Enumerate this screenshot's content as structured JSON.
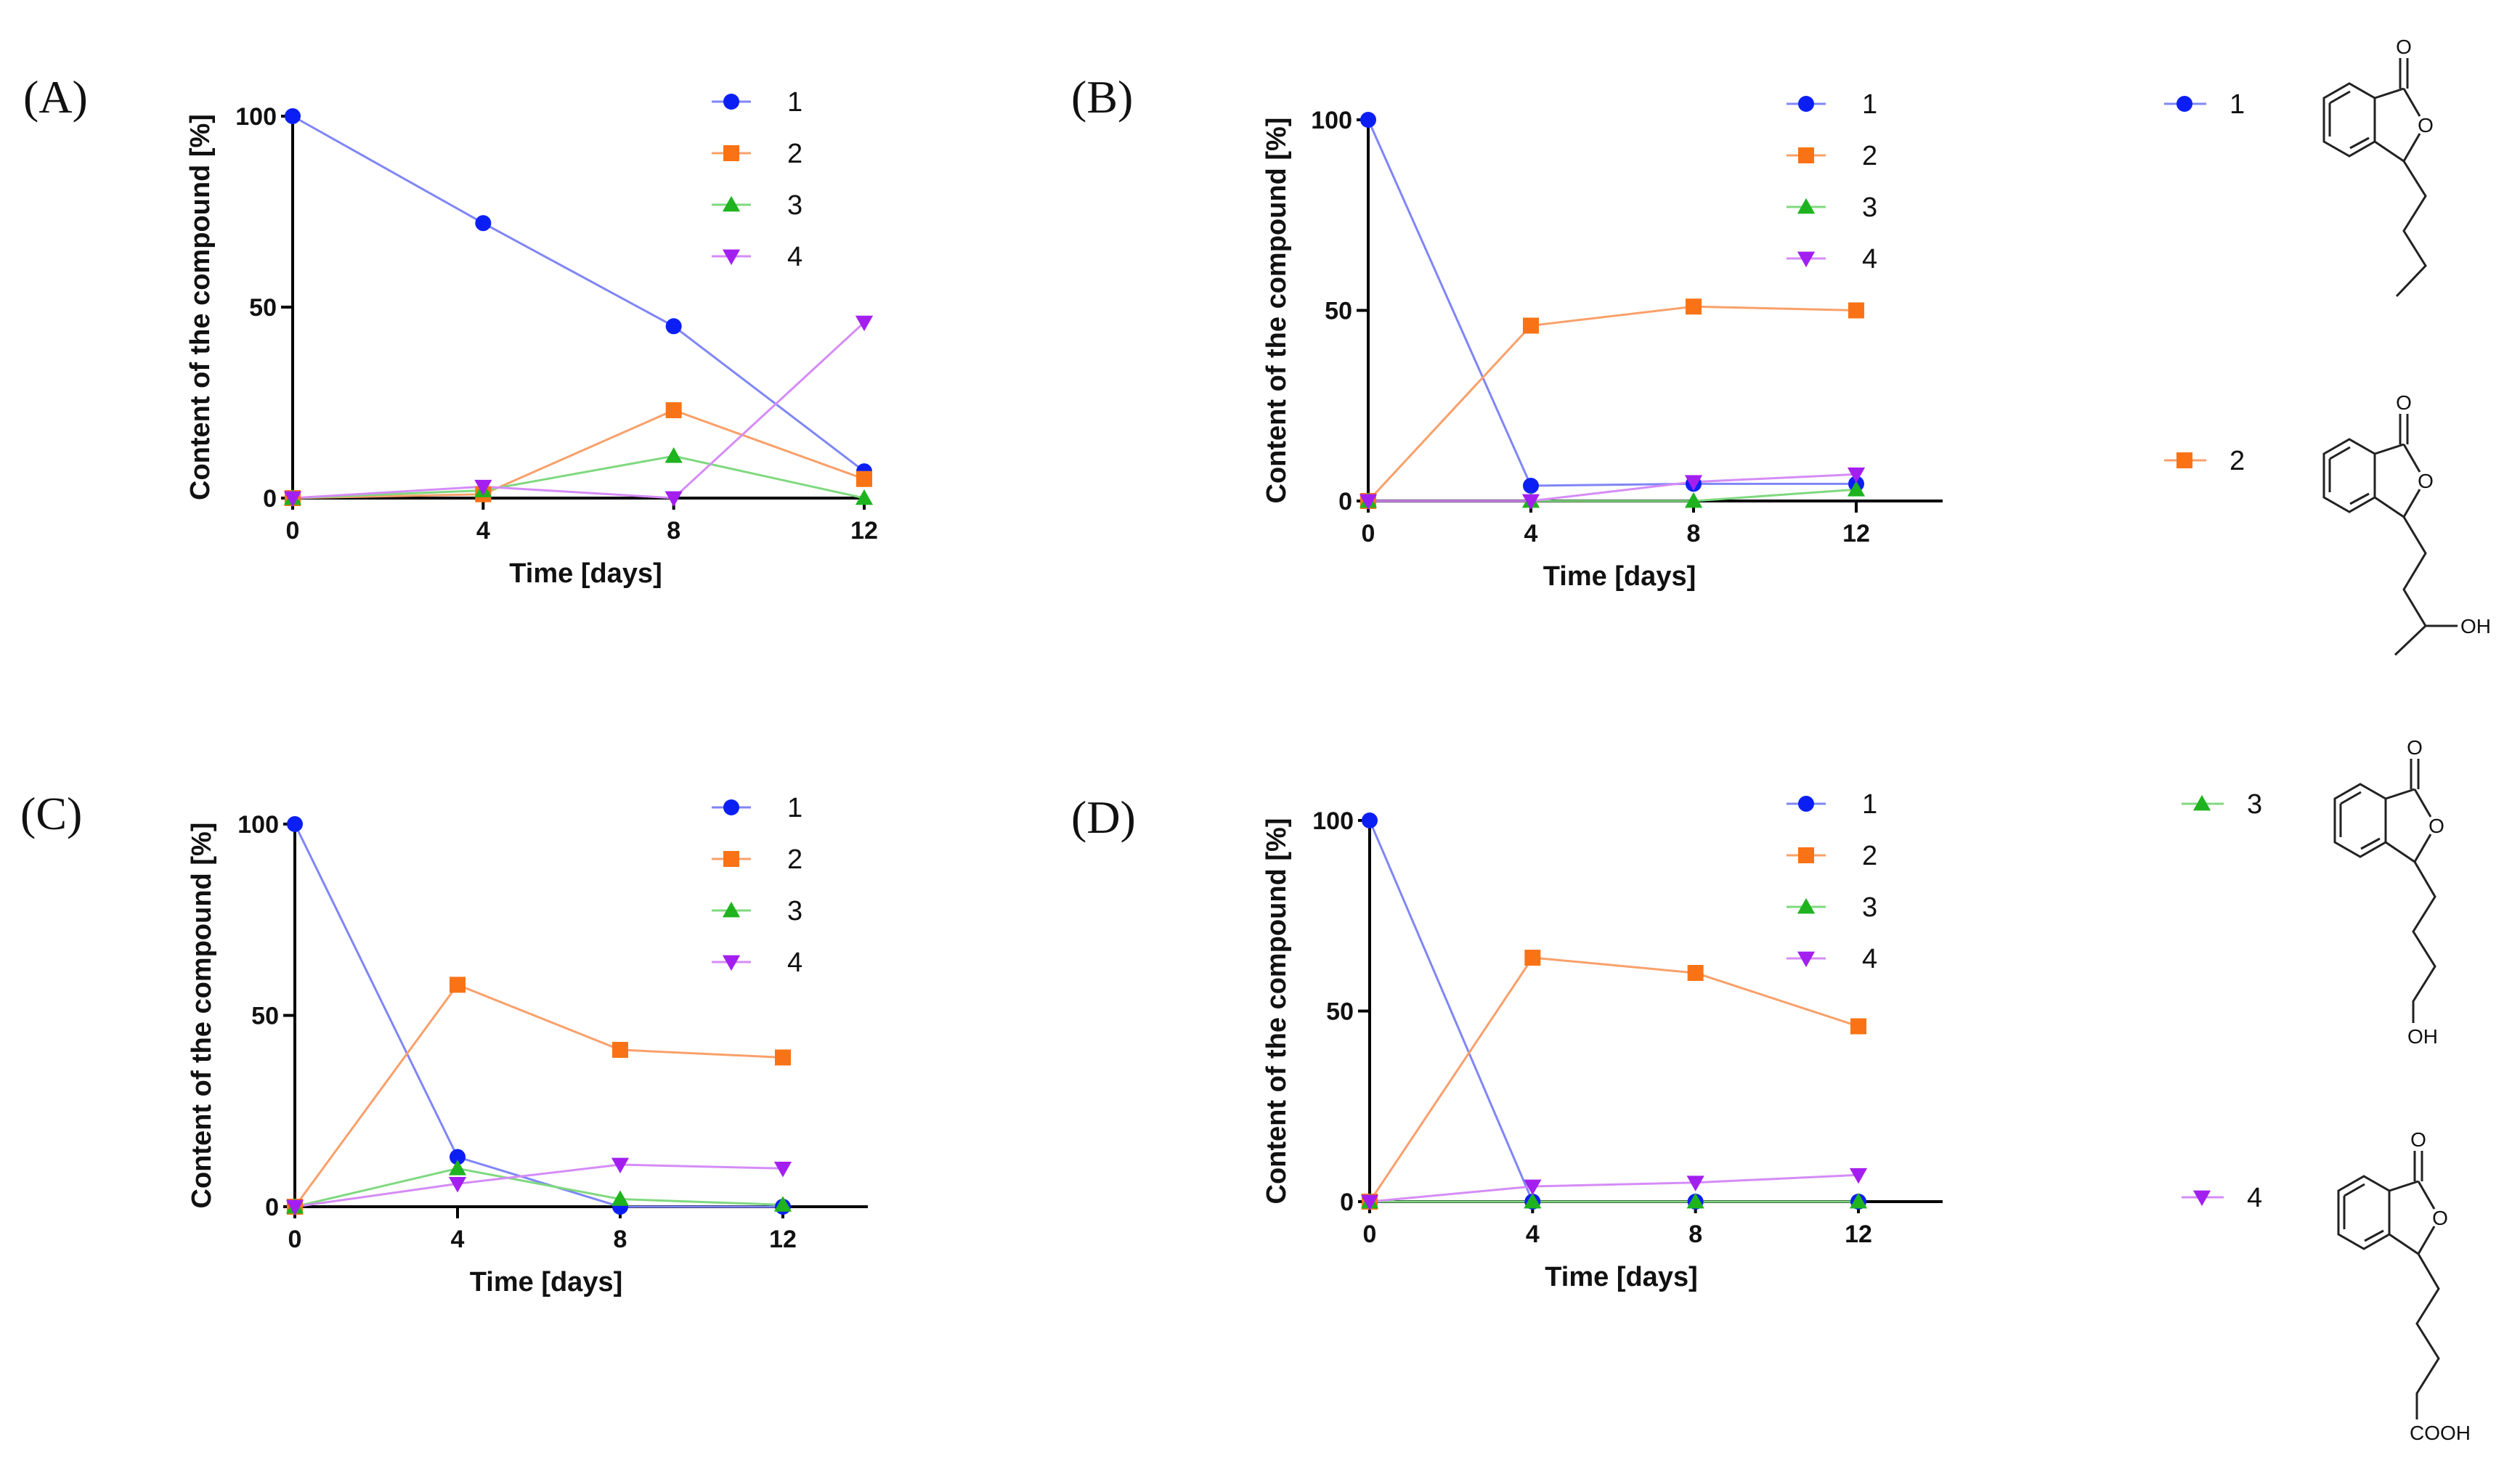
{
  "chart_data": [
    {
      "panel": "(A)",
      "type": "line",
      "xlabel": "Time [days]",
      "ylabel": "Content of the compound [%]",
      "x": [
        0,
        4,
        8,
        12
      ],
      "xticks": [
        "0",
        "4",
        "8",
        "12"
      ],
      "yticks": [
        "0",
        "50",
        "100"
      ],
      "xlim": [
        0,
        12.2
      ],
      "ylim": [
        0,
        100
      ],
      "series": [
        {
          "name": "1",
          "marker": "circle",
          "color": "#0b1ff5",
          "line_color": "#7f86f7",
          "values": [
            100,
            72,
            45,
            7
          ]
        },
        {
          "name": "2",
          "marker": "square",
          "color": "#f97316",
          "line_color": "#f9a06a",
          "values": [
            0,
            1,
            23,
            5
          ]
        },
        {
          "name": "3",
          "marker": "triangle-up",
          "color": "#1fb31f",
          "line_color": "#7fd97f",
          "values": [
            0,
            2,
            11,
            0
          ]
        },
        {
          "name": "4",
          "marker": "triangle-down",
          "color": "#a31ff0",
          "line_color": "#d58cf7",
          "values": [
            0,
            3,
            0,
            46
          ]
        }
      ]
    },
    {
      "panel": "(B)",
      "type": "line",
      "xlabel": "Time [days]",
      "ylabel": "Content of the compound [%]",
      "x": [
        0,
        4,
        8,
        12
      ],
      "xticks": [
        "0",
        "4",
        "8",
        "12"
      ],
      "yticks": [
        "0",
        "50",
        "100"
      ],
      "xlim": [
        0,
        14
      ],
      "ylim": [
        0,
        100
      ],
      "series": [
        {
          "name": "1",
          "marker": "circle",
          "color": "#0b1ff5",
          "line_color": "#7f86f7",
          "values": [
            100,
            4,
            4.5,
            4.5
          ]
        },
        {
          "name": "2",
          "marker": "square",
          "color": "#f97316",
          "line_color": "#f9a06a",
          "values": [
            0,
            46,
            51,
            50
          ]
        },
        {
          "name": "3",
          "marker": "triangle-up",
          "color": "#1fb31f",
          "line_color": "#7fd97f",
          "values": [
            0,
            0,
            0,
            3
          ]
        },
        {
          "name": "4",
          "marker": "triangle-down",
          "color": "#a31ff0",
          "line_color": "#d58cf7",
          "values": [
            0,
            0,
            5,
            7
          ]
        }
      ]
    },
    {
      "panel": "(C)",
      "type": "line",
      "xlabel": "Time [days]",
      "ylabel": "Content of the compound [%]",
      "x": [
        0,
        4,
        8,
        12
      ],
      "xticks": [
        "0",
        "4",
        "8",
        "12"
      ],
      "yticks": [
        "0",
        "50",
        "100"
      ],
      "xlim": [
        0,
        14
      ],
      "ylim": [
        0,
        100
      ],
      "series": [
        {
          "name": "1",
          "marker": "circle",
          "color": "#0b1ff5",
          "line_color": "#7f86f7",
          "values": [
            100,
            13,
            0,
            0
          ]
        },
        {
          "name": "2",
          "marker": "square",
          "color": "#f97316",
          "line_color": "#f9a06a",
          "values": [
            0,
            58,
            41,
            39
          ]
        },
        {
          "name": "3",
          "marker": "triangle-up",
          "color": "#1fb31f",
          "line_color": "#7fd97f",
          "values": [
            0,
            10,
            2,
            0.5
          ]
        },
        {
          "name": "4",
          "marker": "triangle-down",
          "color": "#a31ff0",
          "line_color": "#d58cf7",
          "values": [
            0,
            6,
            11,
            10
          ]
        }
      ]
    },
    {
      "panel": "(D)",
      "type": "line",
      "xlabel": "Time [days]",
      "ylabel": "Content of the compound [%]",
      "x": [
        0,
        4,
        8,
        12
      ],
      "xticks": [
        "0",
        "4",
        "8",
        "12"
      ],
      "yticks": [
        "0",
        "50",
        "100"
      ],
      "xlim": [
        0,
        14
      ],
      "ylim": [
        0,
        100
      ],
      "series": [
        {
          "name": "1",
          "marker": "circle",
          "color": "#0b1ff5",
          "line_color": "#7f86f7",
          "values": [
            100,
            0,
            0,
            0
          ]
        },
        {
          "name": "2",
          "marker": "square",
          "color": "#f97316",
          "line_color": "#f9a06a",
          "values": [
            0,
            64,
            60,
            46
          ]
        },
        {
          "name": "3",
          "marker": "triangle-up",
          "color": "#1fb31f",
          "line_color": "#7fd97f",
          "values": [
            0,
            0,
            0,
            0
          ]
        },
        {
          "name": "4",
          "marker": "triangle-down",
          "color": "#a31ff0",
          "line_color": "#d58cf7",
          "values": [
            0,
            4,
            5,
            7
          ]
        }
      ]
    }
  ],
  "structures": [
    {
      "compound": "1",
      "marker": "circle",
      "color": "#0b1ff5",
      "substituent": ""
    },
    {
      "compound": "2",
      "marker": "square",
      "color": "#f97316",
      "substituent": "OH"
    },
    {
      "compound": "3",
      "marker": "triangle-up",
      "color": "#1fb31f",
      "substituent": "OH"
    },
    {
      "compound": "4",
      "marker": "triangle-down",
      "color": "#a31ff0",
      "substituent": "COOH"
    }
  ],
  "ring_atom_label": "O"
}
